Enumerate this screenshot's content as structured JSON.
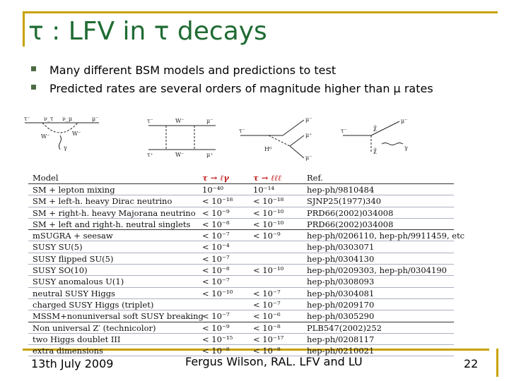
{
  "slide": {
    "title": "τ : LFV in τ decays",
    "bullets": [
      "Many different BSM models and predictions to test",
      "Predicted rates are several orders of magnitude higher than  μ rates"
    ]
  },
  "diagrams": {
    "d1": {
      "labels": [
        "τ⁻",
        "ν_τ",
        "ν_μ",
        "μ⁻",
        "W⁻",
        "W⁻",
        "γ"
      ]
    },
    "d2": {
      "labels": [
        "τ⁻",
        "W⁻",
        "μ⁻",
        "τ⁺",
        "W⁻",
        "μ⁺"
      ]
    },
    "d3": {
      "labels": [
        "τ⁻",
        "μ⁻",
        "μ⁺",
        "H⁰",
        "μ⁻"
      ]
    },
    "d4": {
      "labels": [
        "τ⁻",
        "χ̃",
        "μ⁻",
        "χ̃",
        "γ"
      ]
    }
  },
  "table": {
    "headers": {
      "model": "Model",
      "col1": "τ → ℓγ",
      "col2": "τ → ℓℓℓ",
      "ref": "Ref."
    },
    "rows": [
      {
        "model": "SM + lepton mixing",
        "r1": "10⁻⁴⁰",
        "r2": "10⁻¹⁴",
        "ref": "hep-ph/9810484"
      },
      {
        "model": "SM + left-h. heavy Dirac neutrino",
        "r1": "< 10⁻¹⁸",
        "r2": "< 10⁻¹⁸",
        "ref": "SJNP25(1977)340"
      },
      {
        "model": "SM + right-h. heavy Majorana neutrino",
        "r1": "< 10⁻⁹",
        "r2": "< 10⁻¹⁰",
        "ref": "PRD66(2002)034008"
      },
      {
        "model": "SM + left and right-h. neutral singlets",
        "r1": "< 10⁻⁸",
        "r2": "< 10⁻¹⁰",
        "ref": "PRD66(2002)034008"
      },
      {
        "model": "mSUGRA + seesaw",
        "r1": "< 10⁻⁷",
        "r2": "< 10⁻⁹",
        "ref": "hep-ph/0206110, hep-ph/9911459, etc"
      },
      {
        "model": "SUSY SU(5)",
        "r1": "< 10⁻⁴",
        "r2": "",
        "ref": "hep-ph/0303071"
      },
      {
        "model": "SUSY flipped SU(5)",
        "r1": "< 10⁻⁷",
        "r2": "",
        "ref": "hep-ph/0304130"
      },
      {
        "model": "SUSY SO(10)",
        "r1": "< 10⁻⁸",
        "r2": "< 10⁻¹⁰",
        "ref": "hep-ph/0209303, hep-ph/0304190"
      },
      {
        "model": "SUSY anomalous U(1)",
        "r1": "< 10⁻⁷",
        "r2": "",
        "ref": "hep-ph/0308093"
      },
      {
        "model": "neutral SUSY Higgs",
        "r1": "< 10⁻¹⁰",
        "r2": "< 10⁻⁷",
        "ref": "hep-ph/0304081"
      },
      {
        "model": "charged SUSY Higgs (triplet)",
        "r1": "",
        "r2": "< 10⁻⁷",
        "ref": "hep-ph/0209170"
      },
      {
        "model": "MSSM+nonuniversal soft SUSY breaking",
        "r1": "< 10⁻⁷",
        "r2": "< 10⁻⁶",
        "ref": "hep-ph/0305290"
      },
      {
        "model": "Non universal Z′ (technicolor)",
        "r1": "< 10⁻⁹",
        "r2": "< 10⁻⁸",
        "ref": "PLB547(2002)252"
      },
      {
        "model": "two Higgs doublet III",
        "r1": "< 10⁻¹⁵",
        "r2": "< 10⁻¹⁷",
        "ref": "hep-ph/0208117"
      },
      {
        "model": "extra dimensions",
        "r1": "< 10⁻⁸",
        "r2": "< 10⁻⁸",
        "ref": "hep-ph/0210021"
      }
    ]
  },
  "footer": {
    "date": "13th July 2009",
    "author": "Fergus Wilson, RAL. LFV and LU",
    "page": "22"
  }
}
